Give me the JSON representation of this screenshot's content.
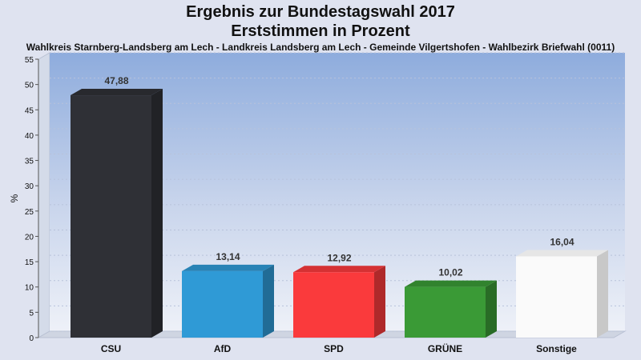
{
  "header": {
    "title_line1": "Ergebnis zur Bundestagswahl 2017",
    "title_line2": "Erststimmen in Prozent",
    "subtitle": "Wahlkreis Starnberg-Landsberg am Lech - Landkreis Landsberg am Lech - Gemeinde Vilgertshofen - Wahlbezirk Briefwahl (0011)"
  },
  "chart_data": {
    "type": "bar",
    "title": "Ergebnis zur Bundestagswahl 2017 Erststimmen in Prozent",
    "subtitle": "Wahlkreis Starnberg-Landsberg am Lech - Landkreis Landsberg am Lech - Gemeinde Vilgertshofen - Wahlbezirk Briefwahl (0011)",
    "xlabel": "",
    "ylabel": "%",
    "categories": [
      "CSU",
      "AfD",
      "SPD",
      "GRÜNE",
      "Sonstige"
    ],
    "values": [
      47.88,
      13.14,
      12.92,
      10.02,
      16.04
    ],
    "value_labels": [
      "47,88",
      "13,14",
      "12,92",
      "10,02",
      "16,04"
    ],
    "colors": [
      "#2f3036",
      "#2f9ad6",
      "#fa3a3c",
      "#3a9a36",
      "#fafafa"
    ],
    "ylim": [
      0,
      55
    ],
    "yticks": [
      0,
      5,
      10,
      15,
      20,
      25,
      30,
      35,
      40,
      45,
      50,
      55
    ],
    "grid": true,
    "legend": "none"
  }
}
